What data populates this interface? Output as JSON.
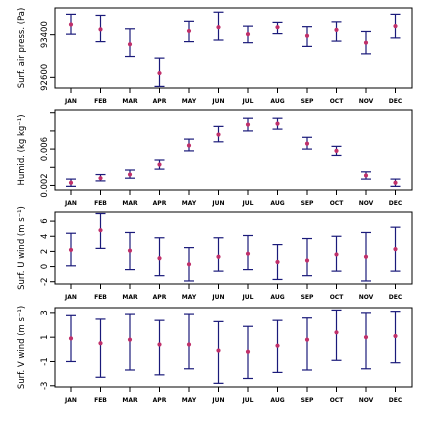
{
  "chart_data": [
    {
      "type": "errorbar",
      "ylabel": "Surf. air press. (Pa)",
      "categories": [
        "JAN",
        "FEB",
        "MAR",
        "APR",
        "MAY",
        "JUN",
        "JUL",
        "AUG",
        "SEP",
        "OCT",
        "NOV",
        "DEC"
      ],
      "ylim": [
        92400,
        93900
      ],
      "yticks": [
        92600,
        93400
      ],
      "ytick_labels": [
        "92600",
        "93400"
      ],
      "mean": [
        93590,
        93500,
        93220,
        92680,
        93470,
        93540,
        93410,
        93540,
        93380,
        93490,
        93250,
        93560
      ],
      "lower": [
        93410,
        93270,
        92990,
        92430,
        93270,
        93300,
        93250,
        93420,
        93180,
        93280,
        93040,
        93340
      ],
      "upper": [
        93780,
        93760,
        93510,
        92960,
        93650,
        93820,
        93560,
        93630,
        93550,
        93640,
        93460,
        93780
      ]
    },
    {
      "type": "errorbar",
      "ylabel": "Humid. (kg kg⁻¹)",
      "categories": [
        "JAN",
        "FEB",
        "MAR",
        "APR",
        "MAY",
        "JUN",
        "JUL",
        "AUG",
        "SEP",
        "OCT",
        "NOV",
        "DEC"
      ],
      "ylim": [
        0.0015,
        0.0103
      ],
      "yticks": [
        0.002,
        0.004,
        0.006,
        0.008,
        0.01
      ],
      "ytick_labels": [
        "0.002",
        "",
        "0.006",
        "",
        ""
      ],
      "mean": [
        0.0023,
        0.0028,
        0.0032,
        0.0043,
        0.0064,
        0.0076,
        0.0087,
        0.0088,
        0.0066,
        0.0058,
        0.0031,
        0.0023
      ],
      "lower": [
        0.0019,
        0.0025,
        0.0028,
        0.0038,
        0.0058,
        0.0068,
        0.008,
        0.0082,
        0.006,
        0.0053,
        0.0027,
        0.0019
      ],
      "upper": [
        0.0027,
        0.0032,
        0.0037,
        0.0048,
        0.0071,
        0.0085,
        0.0094,
        0.0094,
        0.0073,
        0.0063,
        0.0035,
        0.0027
      ]
    },
    {
      "type": "errorbar",
      "ylabel": "Surf. U wind (m s⁻¹)",
      "categories": [
        "JAN",
        "FEB",
        "MAR",
        "APR",
        "MAY",
        "JUN",
        "JUL",
        "AUG",
        "SEP",
        "OCT",
        "NOV",
        "DEC"
      ],
      "ylim": [
        -2.3,
        7.2
      ],
      "yticks": [
        -2,
        0,
        2,
        4,
        6
      ],
      "ytick_labels": [
        "-2",
        "0",
        "2",
        "4",
        "6"
      ],
      "mean": [
        2.2,
        4.8,
        2.1,
        1.1,
        0.3,
        1.3,
        1.7,
        0.6,
        0.8,
        1.6,
        1.3,
        2.3
      ],
      "lower": [
        0.1,
        2.4,
        -0.4,
        -1.2,
        -1.9,
        -0.6,
        -0.4,
        -1.7,
        -1.2,
        -0.6,
        -1.9,
        -0.6
      ],
      "upper": [
        4.4,
        7.0,
        4.5,
        3.8,
        2.5,
        3.8,
        4.1,
        2.9,
        3.7,
        4.0,
        4.5,
        5.2
      ]
    },
    {
      "type": "errorbar",
      "ylabel": "Surf. V wind (m s⁻¹)",
      "categories": [
        "JAN",
        "FEB",
        "MAR",
        "APR",
        "MAY",
        "JUN",
        "JUL",
        "AUG",
        "SEP",
        "OCT",
        "NOV",
        "DEC"
      ],
      "ylim": [
        -3.1,
        3.4
      ],
      "yticks": [
        -3,
        -1,
        1,
        3
      ],
      "ytick_labels": [
        "-3",
        "-1",
        "1",
        "3"
      ],
      "mean": [
        0.9,
        0.5,
        0.8,
        0.4,
        0.4,
        -0.1,
        -0.2,
        0.3,
        0.8,
        1.4,
        1.0,
        1.1
      ],
      "lower": [
        -1.0,
        -2.3,
        -1.7,
        -2.1,
        -1.6,
        -2.8,
        -2.4,
        -1.9,
        -1.7,
        -0.9,
        -1.6,
        -1.1
      ],
      "upper": [
        2.8,
        2.5,
        2.9,
        2.4,
        2.9,
        2.3,
        1.9,
        2.4,
        2.6,
        3.2,
        3.0,
        3.1
      ]
    }
  ]
}
